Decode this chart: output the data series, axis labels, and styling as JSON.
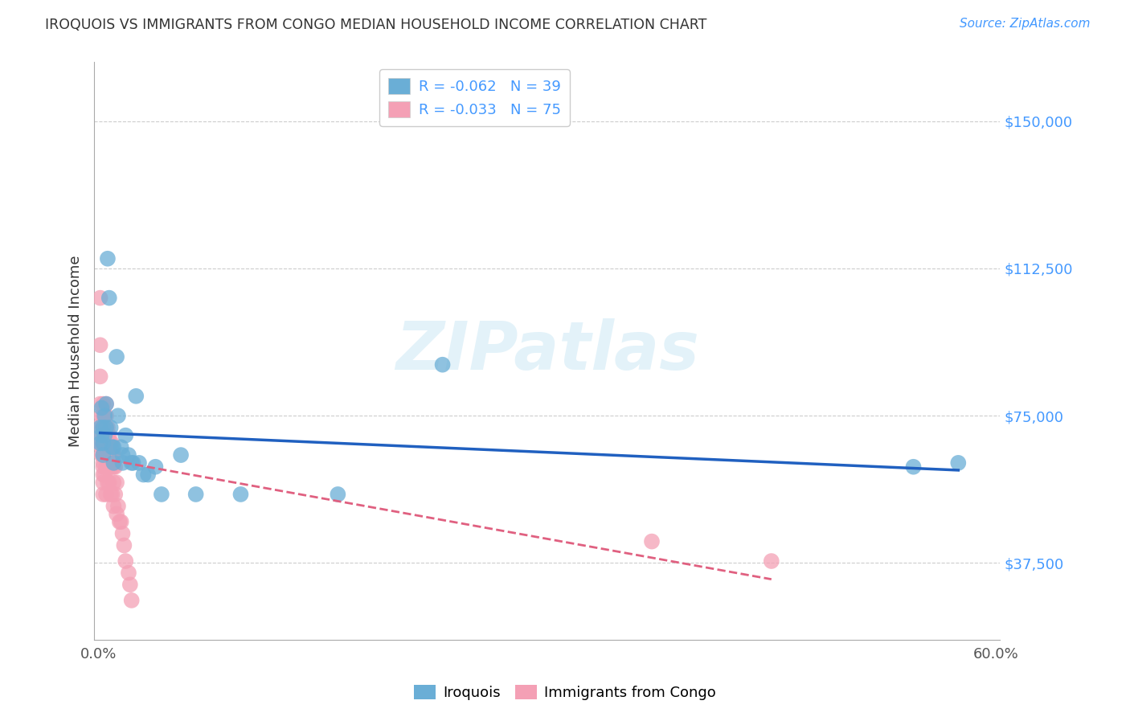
{
  "title": "IROQUOIS VS IMMIGRANTS FROM CONGO MEDIAN HOUSEHOLD INCOME CORRELATION CHART",
  "source": "Source: ZipAtlas.com",
  "ylabel": "Median Household Income",
  "yticks": [
    37500,
    75000,
    112500,
    150000
  ],
  "ytick_labels": [
    "$37,500",
    "$75,000",
    "$112,500",
    "$150,000"
  ],
  "xlim": [
    -0.003,
    0.603
  ],
  "ylim": [
    18000,
    165000
  ],
  "legend_r1": "R = -0.062   N = 39",
  "legend_r2": "R = -0.033   N = 75",
  "color_blue": "#6aaed6",
  "color_pink": "#f4a0b5",
  "line_blue": "#2060c0",
  "line_pink": "#e06080",
  "watermark": "ZIPatlas",
  "iroquois_x": [
    0.001,
    0.001,
    0.002,
    0.002,
    0.003,
    0.003,
    0.003,
    0.004,
    0.004,
    0.005,
    0.005,
    0.006,
    0.007,
    0.008,
    0.009,
    0.01,
    0.01,
    0.012,
    0.013,
    0.015,
    0.016,
    0.016,
    0.018,
    0.02,
    0.022,
    0.023,
    0.025,
    0.027,
    0.03,
    0.033,
    0.038,
    0.042,
    0.055,
    0.065,
    0.095,
    0.16,
    0.23,
    0.545,
    0.575
  ],
  "iroquois_y": [
    72000,
    68000,
    77000,
    70000,
    72000,
    68000,
    65000,
    75000,
    70000,
    78000,
    72000,
    115000,
    105000,
    72000,
    67000,
    67000,
    63000,
    90000,
    75000,
    67000,
    65000,
    63000,
    70000,
    65000,
    63000,
    63000,
    80000,
    63000,
    60000,
    60000,
    62000,
    55000,
    65000,
    55000,
    55000,
    55000,
    88000,
    62000,
    63000
  ],
  "congo_x": [
    0.001,
    0.001,
    0.001,
    0.001,
    0.002,
    0.002,
    0.002,
    0.002,
    0.002,
    0.002,
    0.002,
    0.003,
    0.003,
    0.003,
    0.003,
    0.003,
    0.003,
    0.003,
    0.003,
    0.003,
    0.003,
    0.003,
    0.003,
    0.004,
    0.004,
    0.004,
    0.004,
    0.004,
    0.004,
    0.005,
    0.005,
    0.005,
    0.005,
    0.005,
    0.005,
    0.005,
    0.005,
    0.006,
    0.006,
    0.006,
    0.006,
    0.006,
    0.006,
    0.007,
    0.007,
    0.007,
    0.007,
    0.007,
    0.008,
    0.008,
    0.008,
    0.008,
    0.009,
    0.009,
    0.009,
    0.009,
    0.01,
    0.01,
    0.01,
    0.01,
    0.011,
    0.011,
    0.012,
    0.012,
    0.013,
    0.014,
    0.015,
    0.016,
    0.017,
    0.018,
    0.02,
    0.021,
    0.022,
    0.37,
    0.45
  ],
  "congo_y": [
    105000,
    93000,
    85000,
    78000,
    75000,
    73000,
    72000,
    70000,
    68000,
    67000,
    65000,
    78000,
    75000,
    73000,
    70000,
    68000,
    67000,
    65000,
    63000,
    62000,
    60000,
    58000,
    55000,
    75000,
    72000,
    70000,
    68000,
    65000,
    60000,
    78000,
    75000,
    72000,
    70000,
    68000,
    65000,
    62000,
    55000,
    72000,
    70000,
    67000,
    65000,
    62000,
    58000,
    70000,
    67000,
    65000,
    62000,
    58000,
    68000,
    65000,
    62000,
    55000,
    68000,
    65000,
    62000,
    55000,
    65000,
    62000,
    58000,
    52000,
    62000,
    55000,
    58000,
    50000,
    52000,
    48000,
    48000,
    45000,
    42000,
    38000,
    35000,
    32000,
    28000,
    43000,
    38000
  ]
}
